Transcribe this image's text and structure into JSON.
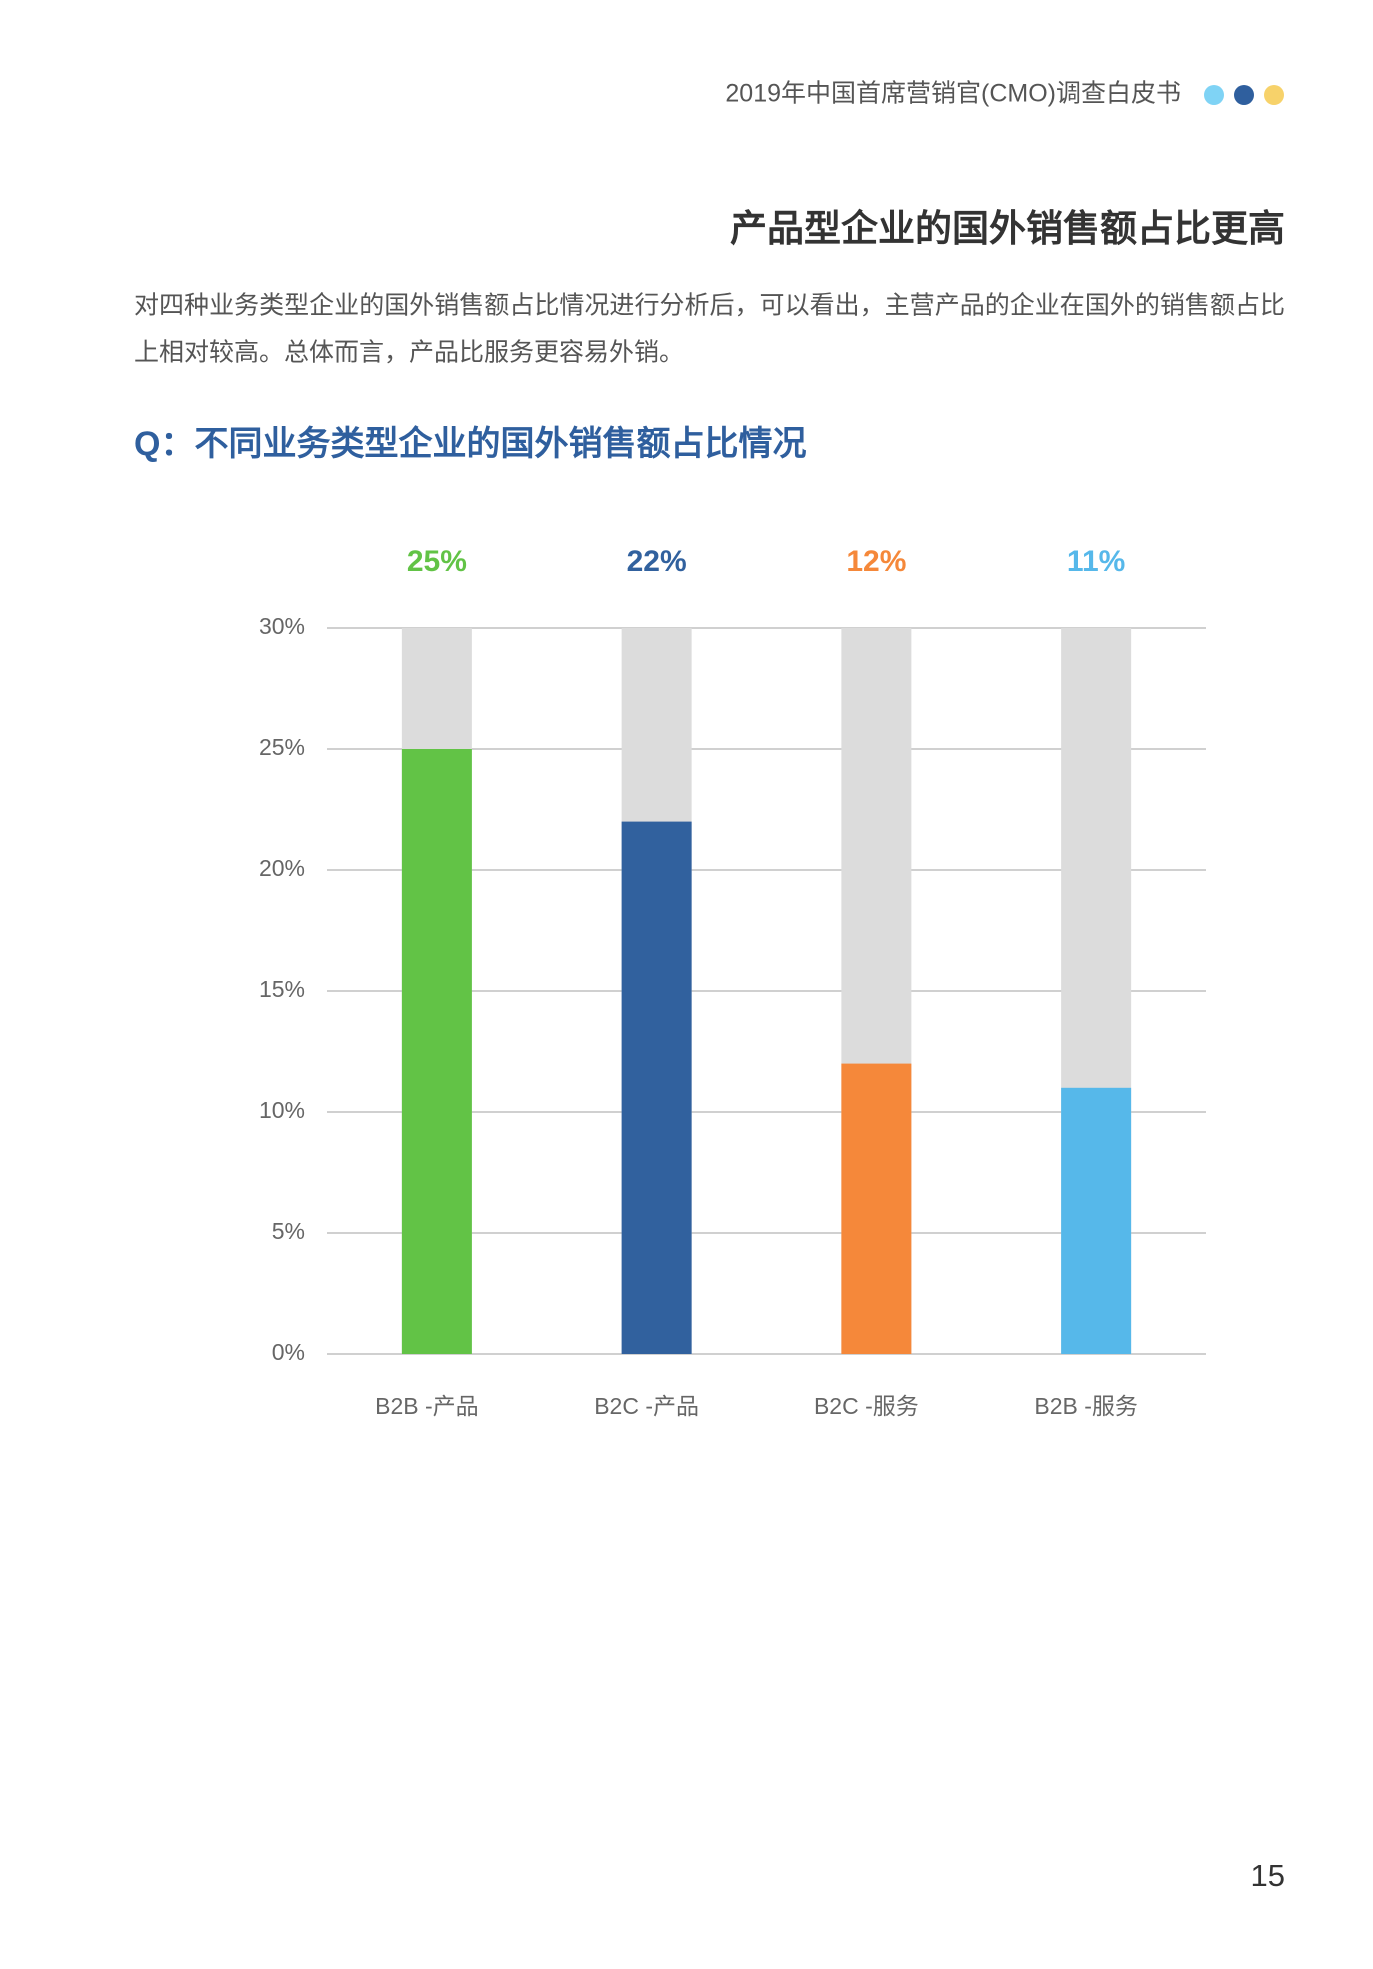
{
  "header": {
    "title": "2019年中国首席营销官(CMO)调查白皮书"
  },
  "section_title": "产品型企业的国外销售额占比更高",
  "paragraph": [
    "对四种业务类型企业的国外销售额占比情况进行分析后，可以看出，主营产品的企业在国外的销售额占比",
    "上相对较高。总体而言，产品比服务更容易外销。"
  ],
  "chart_data": {
    "type": "bar",
    "title": "Q：不同业务类型企业的国外销售额占比情况",
    "categories": [
      "B2B -产品",
      "B2C -产品",
      "B2C -服务",
      "B2B -服务"
    ],
    "values": [
      25,
      22,
      12,
      11
    ],
    "value_labels": [
      "25%",
      "22%",
      "12%",
      "11%"
    ],
    "colors": [
      "#62c346",
      "#31619e",
      "#f5883a",
      "#56b8ea"
    ],
    "ylim": [
      0,
      30
    ],
    "yticks": [
      {
        "value": 0,
        "label": "0%"
      },
      {
        "value": 5,
        "label": "5%"
      },
      {
        "value": 10,
        "label": "10%"
      },
      {
        "value": 15,
        "label": "15%"
      },
      {
        "value": 20,
        "label": "20%"
      },
      {
        "value": 25,
        "label": "25%"
      },
      {
        "value": 30,
        "label": "30%"
      }
    ],
    "grid": true
  },
  "page_number": "15"
}
